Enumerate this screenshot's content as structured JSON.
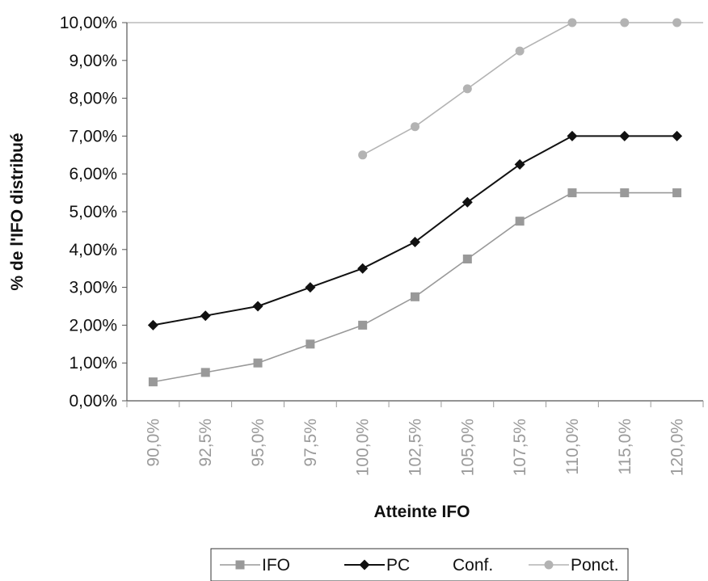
{
  "chart_data": {
    "type": "line",
    "title": "",
    "xlabel": "Atteinte IFO",
    "ylabel": "% de l'IFO distribué",
    "categories": [
      "90,0%",
      "92,5%",
      "95,0%",
      "97,5%",
      "100,0%",
      "102,5%",
      "105,0%",
      "107,5%",
      "110,0%",
      "115,0%",
      "120,0%"
    ],
    "ylim": [
      0,
      10
    ],
    "yticks": [
      "0,00%",
      "1,00%",
      "2,00%",
      "3,00%",
      "4,00%",
      "5,00%",
      "6,00%",
      "7,00%",
      "8,00%",
      "9,00%",
      "10,00%"
    ],
    "series": [
      {
        "name": "IFO",
        "color": "#999999",
        "marker": "square",
        "values": [
          0.5,
          0.75,
          1.0,
          1.5,
          2.0,
          2.75,
          3.75,
          4.75,
          5.5,
          5.5,
          5.5
        ]
      },
      {
        "name": "PC",
        "color": "#111111",
        "marker": "diamond",
        "values": [
          2.0,
          2.25,
          2.5,
          3.0,
          3.5,
          4.2,
          5.25,
          6.25,
          7.0,
          7.0,
          7.0
        ]
      },
      {
        "name": "Conf.",
        "color": "#cccccc",
        "marker": "none",
        "values": [
          null,
          null,
          null,
          null,
          null,
          null,
          null,
          null,
          null,
          null,
          null
        ]
      },
      {
        "name": "Ponct.",
        "color": "#b3b3b3",
        "marker": "circle",
        "values": [
          null,
          null,
          null,
          null,
          6.5,
          7.25,
          8.25,
          9.25,
          10.0,
          10.0,
          10.0
        ]
      }
    ],
    "grid": false,
    "legend_position": "bottom"
  }
}
